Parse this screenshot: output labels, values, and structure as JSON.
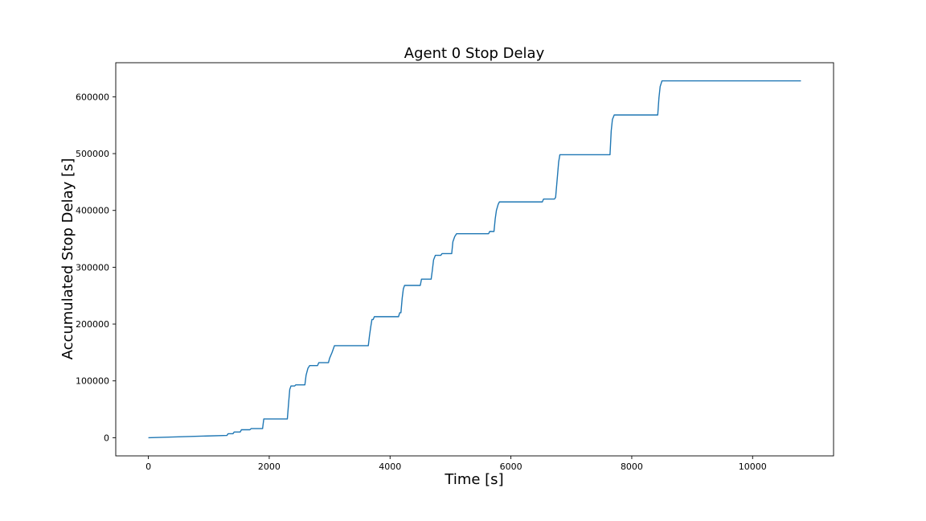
{
  "chart_data": {
    "type": "line",
    "title": "Agent 0 Stop Delay",
    "xlabel": "Time [s]",
    "ylabel": "Accumulated Stop Delay [s]",
    "xlim": [
      -540,
      11340
    ],
    "ylim": [
      -32000,
      660000
    ],
    "xticks": [
      0,
      2000,
      4000,
      6000,
      8000,
      10000
    ],
    "yticks": [
      0,
      100000,
      200000,
      300000,
      400000,
      500000,
      600000
    ],
    "grid": false,
    "series": [
      {
        "color": "#1f77b4",
        "x": [
          0,
          1300,
          1320,
          1400,
          1420,
          1520,
          1540,
          1680,
          1700,
          1890,
          1910,
          2300,
          2320,
          2340,
          2360,
          2420,
          2440,
          2590,
          2610,
          2640,
          2670,
          2700,
          2800,
          2820,
          2980,
          3000,
          3040,
          3080,
          3640,
          3660,
          3680,
          3700,
          3720,
          3740,
          4140,
          4160,
          4180,
          4200,
          4220,
          4240,
          4260,
          4500,
          4520,
          4680,
          4700,
          4720,
          4750,
          4840,
          4860,
          5020,
          5040,
          5070,
          5100,
          5630,
          5650,
          5720,
          5740,
          5760,
          5790,
          5810,
          6520,
          6540,
          6720,
          6740,
          6770,
          6790,
          6810,
          6830,
          7640,
          7660,
          7680,
          7710,
          8430,
          8450,
          8470,
          8500,
          10800
        ],
        "y": [
          0,
          4000,
          7000,
          7000,
          10000,
          10000,
          14000,
          14000,
          16000,
          16000,
          33000,
          33000,
          60000,
          85000,
          91000,
          91000,
          93000,
          93000,
          110000,
          122000,
          127000,
          127000,
          127000,
          132000,
          132000,
          140000,
          150000,
          162000,
          162000,
          180000,
          195000,
          208000,
          208000,
          213000,
          213000,
          220000,
          220000,
          245000,
          262000,
          268000,
          268000,
          268000,
          279000,
          279000,
          295000,
          313000,
          321000,
          321000,
          324000,
          324000,
          345000,
          354000,
          359000,
          359000,
          363000,
          363000,
          385000,
          400000,
          411000,
          415000,
          415000,
          420000,
          420000,
          423000,
          460000,
          485000,
          498000,
          498000,
          498000,
          540000,
          560000,
          568000,
          568000,
          598000,
          618000,
          628000,
          628000
        ]
      }
    ]
  }
}
